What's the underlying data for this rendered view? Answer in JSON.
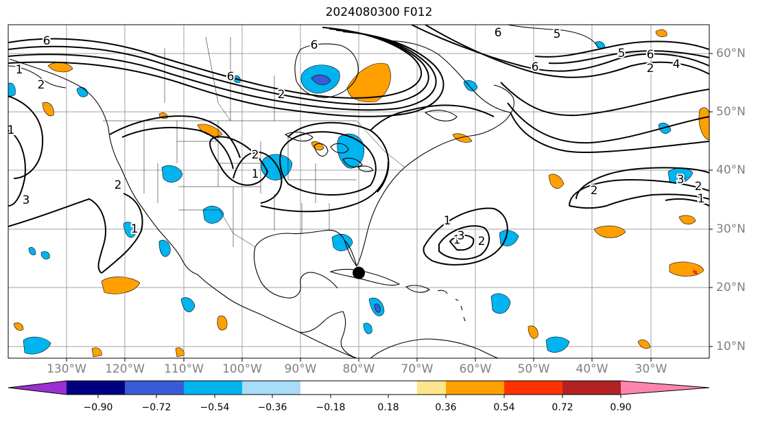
{
  "title": "2024080300 F012",
  "longitude_labels": [
    "130°W",
    "120°W",
    "110°W",
    "100°W",
    "90°W",
    "80°W",
    "70°W",
    "60°W",
    "50°W",
    "40°W",
    "30°W"
  ],
  "latitude_labels": [
    "60°N",
    "50°N",
    "40°N",
    "30°N",
    "20°N",
    "10°N"
  ],
  "colorbar": {
    "tick_labels": [
      "−0.90",
      "−0.72",
      "−0.54",
      "−0.36",
      "−0.18",
      "0.18",
      "0.36",
      "0.54",
      "0.72",
      "0.90"
    ],
    "colors": [
      "#9b30d0",
      "#000080",
      "#3a5bd6",
      "#00b4f0",
      "#a9dcf7",
      "#ffffff",
      "#fde68a",
      "#ffa000",
      "#ff3300",
      "#b22222",
      "#ff85b0"
    ],
    "extend": "both"
  },
  "contour_labels": [
    "6",
    "6",
    "5",
    "5",
    "6",
    "6",
    "2",
    "4",
    "1",
    "2",
    "2",
    "6",
    "6",
    "1",
    "2",
    "1",
    "3",
    "2",
    "1",
    "1",
    "2",
    "1",
    "3",
    "2",
    "1",
    "3",
    "2"
  ],
  "storm_marker": {
    "lon": -80.0,
    "lat": 22.5
  }
}
